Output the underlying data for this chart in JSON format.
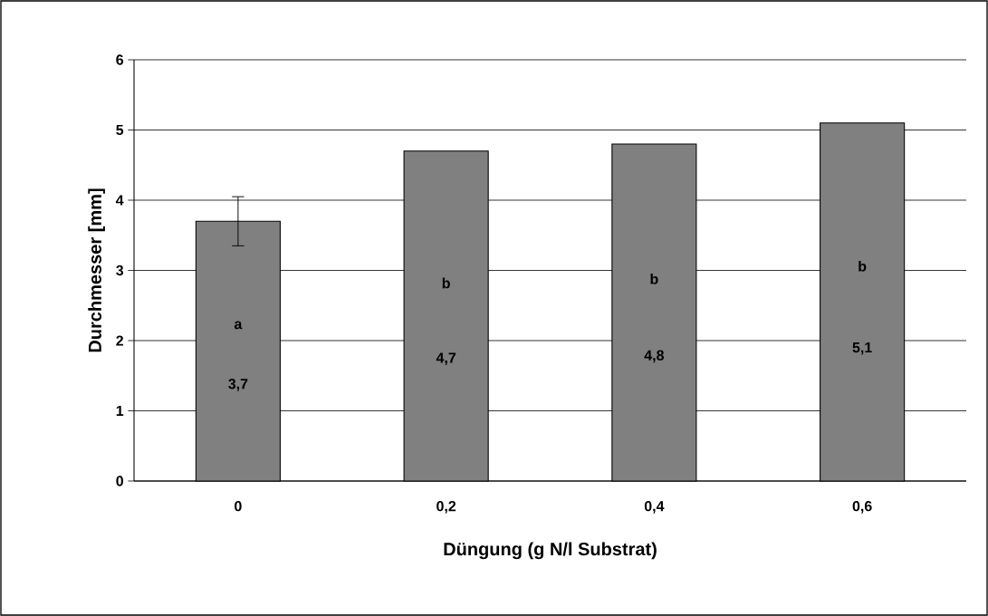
{
  "chart_data": {
    "type": "bar",
    "xlabel": "Düngung (g N/l Substrat)",
    "ylabel": "Durchmesser [mm]",
    "categories": [
      "0",
      "0,2",
      "0,4",
      "0,6"
    ],
    "values": [
      3.7,
      4.7,
      4.8,
      5.1
    ],
    "value_labels": [
      "3,7",
      "4,7",
      "4,8",
      "5,1"
    ],
    "errors": [
      0.35,
      null,
      null,
      null
    ],
    "color": "#808080",
    "ylim": [
      0,
      6
    ],
    "yticks": [
      0,
      1,
      2,
      3,
      4,
      5,
      6
    ],
    "grid": "y",
    "annotations": [
      "a",
      "b",
      "b",
      "b"
    ]
  }
}
